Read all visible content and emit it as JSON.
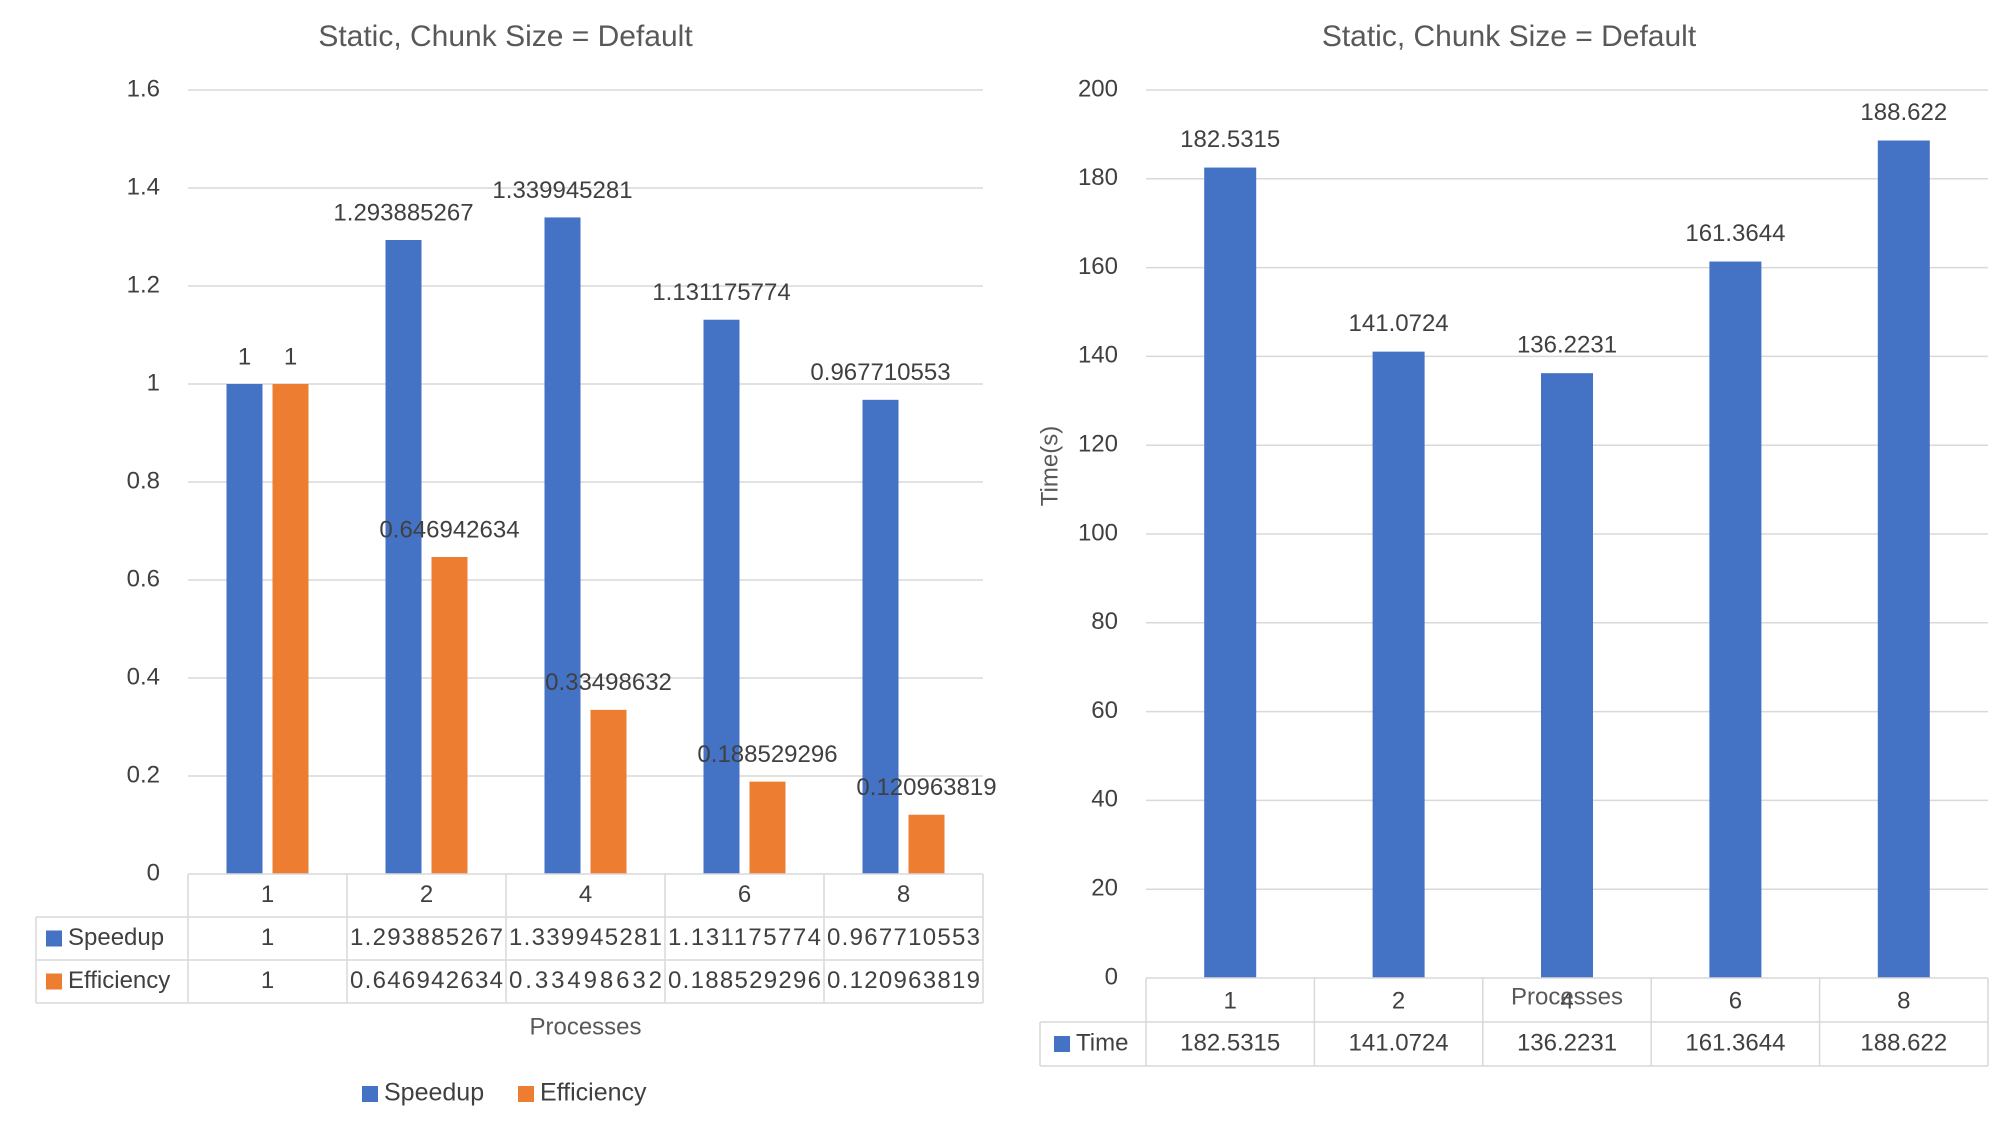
{
  "chart_data": [
    {
      "type": "bar",
      "title": "Static, Chunk Size = Default",
      "xlabel": "Processes",
      "ylabel": "",
      "ylim": [
        0,
        1.6
      ],
      "yticks": [
        "0",
        "0.2",
        "0.4",
        "0.6",
        "0.8",
        "1",
        "1.2",
        "1.4",
        "1.6"
      ],
      "grid": true,
      "legend_position": "bottom",
      "data_table": true,
      "categories": [
        "1",
        "2",
        "4",
        "6",
        "8"
      ],
      "series": [
        {
          "name": "Speedup",
          "color": "#4472C4",
          "values": [
            1,
            1.293885267,
            1.339945281,
            1.131175774,
            0.967710553
          ],
          "labels": [
            "1",
            "1.293885267",
            "1.339945281",
            "1.131175774",
            "0.967710553"
          ]
        },
        {
          "name": "Efficiency",
          "color": "#ED7D31",
          "values": [
            1,
            0.646942634,
            0.33498632,
            0.188529296,
            0.120963819
          ],
          "labels": [
            "1",
            "0.646942634",
            "0.33498632",
            "0.188529296",
            "0.120963819"
          ]
        }
      ]
    },
    {
      "type": "bar",
      "title": "Static, Chunk Size = Default",
      "xlabel": "Processes",
      "ylabel": "Time(s)",
      "ylim": [
        0,
        200
      ],
      "yticks": [
        "0",
        "20",
        "40",
        "60",
        "80",
        "100",
        "120",
        "140",
        "160",
        "180",
        "200"
      ],
      "grid": true,
      "legend_position": "none",
      "data_table": true,
      "categories": [
        "1",
        "2",
        "4",
        "6",
        "8"
      ],
      "series": [
        {
          "name": "Time",
          "color": "#4472C4",
          "values": [
            182.5315,
            141.0724,
            136.2231,
            161.3644,
            188.622
          ],
          "labels": [
            "182.5315",
            "141.0724",
            "136.2231",
            "161.3644",
            "188.622"
          ]
        }
      ]
    }
  ]
}
